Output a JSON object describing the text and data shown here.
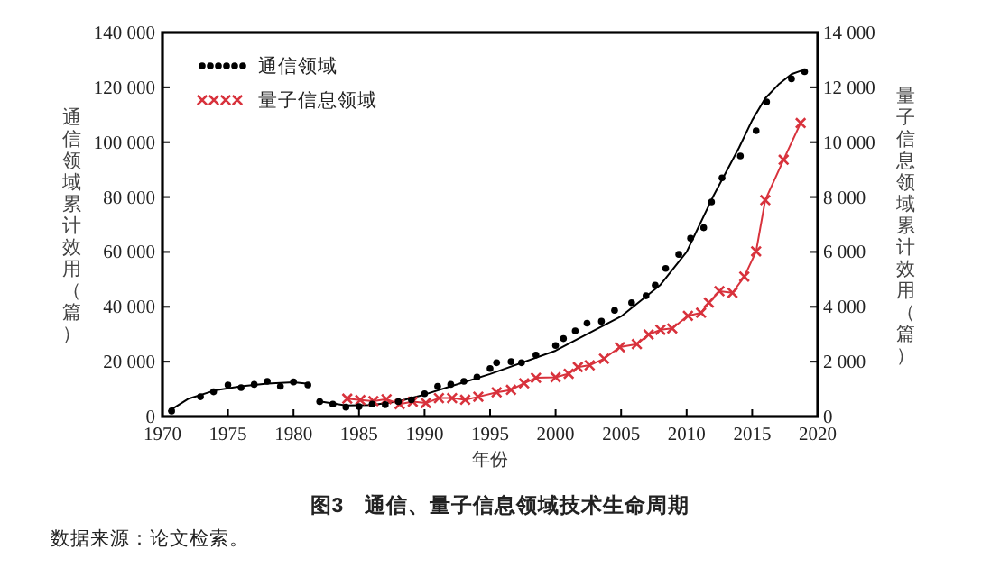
{
  "chart_data": {
    "type": "line",
    "title": "图3　通信、量子信息领域技术生命周期",
    "xlabel": "年份",
    "ylabel": "通信领域累计效用（篇）",
    "y2label": "量子信息领域累计效用（篇）",
    "annotations": [
      "数据来源：论文检索。"
    ],
    "xlim": [
      1970,
      2020
    ],
    "xticks": [
      1970,
      1975,
      1980,
      1985,
      1990,
      1995,
      2000,
      2005,
      2010,
      2015,
      2020
    ],
    "ylim": [
      0,
      140000
    ],
    "yticks": [
      0,
      {
        "value": 20000,
        "label": "20 000"
      },
      {
        "value": 40000,
        "label": "40 000"
      },
      {
        "value": 60000,
        "label": "60 000"
      },
      {
        "value": 80000,
        "label": "80 000"
      },
      {
        "value": 100000,
        "label": "100 000"
      },
      {
        "value": 120000,
        "label": "120 000"
      },
      {
        "value": 140000,
        "label": "140 000"
      }
    ],
    "y2lim": [
      0,
      14000
    ],
    "y2ticks": [
      0,
      {
        "value": 2000,
        "label": "2 000"
      },
      {
        "value": 4000,
        "label": "4 000"
      },
      {
        "value": 6000,
        "label": "6 000"
      },
      {
        "value": 8000,
        "label": "8 000"
      },
      {
        "value": 10000,
        "label": "10 000"
      },
      {
        "value": 12000,
        "label": "12 000"
      },
      {
        "value": 14000,
        "label": "14 000"
      }
    ],
    "legend": "top left",
    "grid": false,
    "series": [
      {
        "name": "通信领域",
        "type": "scatter",
        "marker": "circle",
        "color": "#000000",
        "x": [
          1970.7,
          1972.9,
          1973.9,
          1975,
          1976,
          1977,
          1978,
          1979,
          1980,
          1981.1,
          1982,
          1983,
          1984,
          1985,
          1986,
          1987,
          1988,
          1989,
          1990,
          1991,
          1992,
          1993,
          1994,
          1995,
          1995.5,
          1996.6,
          1997.4,
          1998.5,
          2000,
          2000.6,
          2001.5,
          2002.4,
          2003.5,
          2004.5,
          2005.8,
          2006.9,
          2007.6,
          2008.4,
          2009.4,
          2010.3,
          2011.3,
          2011.9,
          2012.7,
          2014.1,
          2015.3,
          2016.1,
          2018,
          2019
        ],
        "values": [
          2000,
          7200,
          9000,
          11500,
          10500,
          11700,
          12800,
          11000,
          12600,
          11500,
          5400,
          4500,
          3400,
          3600,
          4500,
          4300,
          5400,
          6100,
          8300,
          11000,
          11700,
          12800,
          14400,
          17500,
          19600,
          20000,
          19600,
          22400,
          25900,
          28400,
          31200,
          34000,
          34700,
          38700,
          41500,
          44000,
          47900,
          54000,
          59100,
          65000,
          68800,
          78200,
          87000,
          95000,
          104200,
          114700,
          123100,
          125700
        ]
      },
      {
        "color": "#000000",
        "x": [
          1970.5,
          1972,
          1974,
          1976,
          1978,
          1980,
          1981
        ],
        "values": [
          2000,
          6500,
          9500,
          11000,
          12000,
          12500,
          12000
        ]
      },
      {
        "color": "#000000",
        "x": [
          1982,
          1984,
          1986,
          1988,
          1990,
          1992,
          1995,
          2000,
          2005,
          2008,
          2010,
          2012,
          2014,
          2015,
          2016,
          2017,
          2018,
          2018.7
        ],
        "values": [
          5500,
          4000,
          4200,
          5500,
          8000,
          11000,
          15500,
          24000,
          36500,
          48000,
          60000,
          80000,
          98000,
          108000,
          116000,
          121000,
          124800,
          126000
        ]
      },
      {
        "name": "量子信息领域",
        "marker": "cross",
        "axis": "y2",
        "color": "#d8323c",
        "x": [
          1984.1,
          1985.1,
          1986.1,
          1987.1,
          1988.1,
          1989.1,
          1990.1,
          1991.1,
          1992.1,
          1993.1,
          1994.1,
          1995.5,
          1996.6,
          1997.6,
          1998.5,
          2000,
          2001,
          2001.7,
          2002.6,
          2003.7,
          2004.9,
          2006.2,
          2007.1,
          2008,
          2008.9,
          2010.1,
          2011.1,
          2011.7,
          2012.5,
          2013.5,
          2014.4,
          2015.3,
          2016,
          2017.4,
          2018.7
        ],
        "values": [
          650,
          600,
          560,
          630,
          450,
          540,
          490,
          670,
          670,
          610,
          720,
          880,
          970,
          1210,
          1410,
          1430,
          1560,
          1800,
          1870,
          2110,
          2530,
          2640,
          2990,
          3160,
          3210,
          3670,
          3780,
          4150,
          4570,
          4510,
          5100,
          6020,
          7890,
          9360,
          10700
        ]
      }
    ]
  }
}
